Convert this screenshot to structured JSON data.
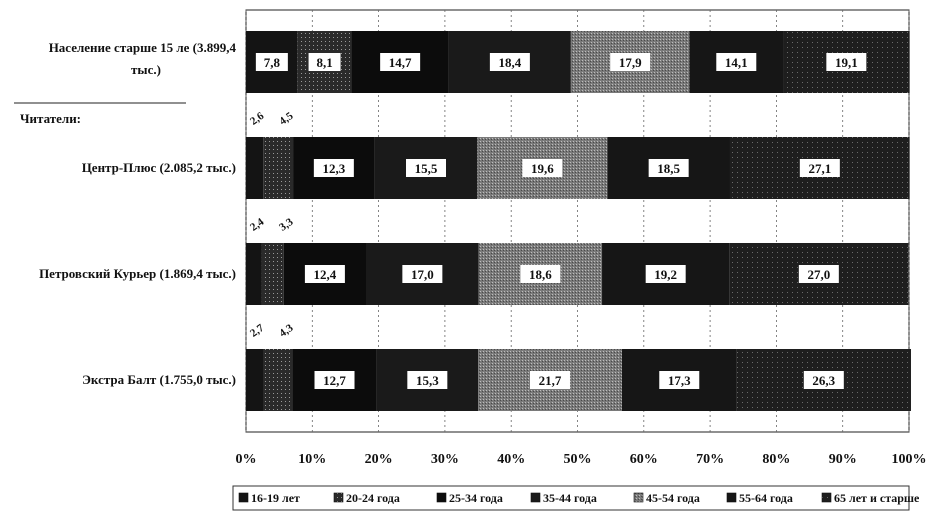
{
  "chart_data": {
    "type": "bar",
    "orientation": "horizontal",
    "stacked": true,
    "xlim": [
      0,
      100
    ],
    "x_ticks": [
      "0%",
      "10%",
      "20%",
      "30%",
      "40%",
      "50%",
      "60%",
      "70%",
      "80%",
      "90%",
      "100%"
    ],
    "grid": true,
    "legend_position": "bottom",
    "section_label": "Читатели:",
    "series": [
      {
        "name": "16-19 лет",
        "color": "#141414"
      },
      {
        "name": "20-24 года",
        "color": "#3a3a3a"
      },
      {
        "name": "25-34 года",
        "color": "#0c0c0c"
      },
      {
        "name": "35-44 года",
        "color": "#1a1a1a"
      },
      {
        "name": "45-54 года",
        "color": "#8c8c8c"
      },
      {
        "name": "55-64 года",
        "color": "#161616"
      },
      {
        "name": "65 лет и старше",
        "color": "#2e2e2e"
      }
    ],
    "rows": [
      {
        "label_lines": [
          "Население старше 15 ле  (3.899,4",
          "тыс.)"
        ],
        "values": [
          7.8,
          8.1,
          14.7,
          18.4,
          17.9,
          14.1,
          19.1
        ],
        "labels": [
          "7,8",
          "8,1",
          "14,7",
          "18,4",
          "17,9",
          "14,1",
          "19,1"
        ]
      },
      {
        "label_lines": [
          "Центр-Плюс (2.085,2 тыс.)"
        ],
        "values": [
          2.6,
          4.5,
          12.3,
          15.5,
          19.6,
          18.5,
          27.1
        ],
        "labels": [
          "2,6",
          "4,5",
          "12,3",
          "15,5",
          "19,6",
          "18,5",
          "27,1"
        ]
      },
      {
        "label_lines": [
          "Петровский Курьер (1.869,4 тыс.)"
        ],
        "values": [
          2.4,
          3.3,
          12.4,
          17.0,
          18.6,
          19.2,
          27.0
        ],
        "labels": [
          "2,4",
          "3,3",
          "12,4",
          "17,0",
          "18,6",
          "19,2",
          "27,0"
        ]
      },
      {
        "label_lines": [
          "Экстра Балт (1.755,0 тыс.)"
        ],
        "values": [
          2.7,
          4.3,
          12.7,
          15.3,
          21.7,
          17.3,
          26.3
        ],
        "labels": [
          "2,7",
          "4,3",
          "12,7",
          "15,3",
          "21,7",
          "17,3",
          "26,3"
        ]
      }
    ]
  }
}
